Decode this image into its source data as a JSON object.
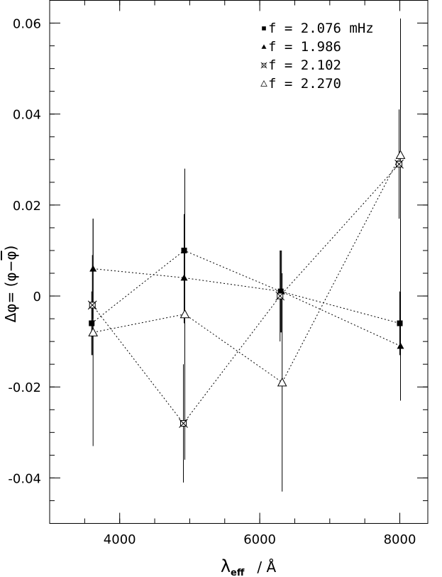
{
  "chart_data": {
    "type": "scatter",
    "title": "",
    "xlabel": "λ_eff / Å",
    "xlabel_main": "λ",
    "xlabel_sub": "eff",
    "xlabel_unit": "/ Å",
    "ylabel": "Δφ= (φ−φ̄)",
    "ylabel_left": "Δφ= (φ−",
    "ylabel_bar": "φ",
    "ylabel_right": ")",
    "xlim": [
      3000,
      8400
    ],
    "ylim": [
      -0.05,
      0.065
    ],
    "xticks": [
      4000,
      6000,
      8000
    ],
    "xtick_labels": [
      "4000",
      "6000",
      "8000"
    ],
    "yticks": [
      -0.04,
      -0.02,
      0,
      0.02,
      0.04,
      0.06
    ],
    "ytick_labels": [
      "-0.04",
      "-0.02",
      "0",
      "0.02",
      "0.04",
      "0.06"
    ],
    "x_minor_step": 500,
    "y_minor_step": 0.005,
    "grid": false,
    "legend_position": "top-right",
    "connect_lines": "dotted",
    "series": [
      {
        "name": "f = 2.076 mHz",
        "marker": "filled-square",
        "points": [
          {
            "x": 3600,
            "y": -0.006,
            "err": 0.007
          },
          {
            "x": 4920,
            "y": 0.01,
            "err": 0.008
          },
          {
            "x": 6300,
            "y": 0.001,
            "err": 0.009
          },
          {
            "x": 8000,
            "y": -0.006,
            "err": 0.007
          }
        ]
      },
      {
        "name": "f = 1.986",
        "marker": "filled-triangle",
        "points": [
          {
            "x": 3620,
            "y": 0.006,
            "err": 0.011
          },
          {
            "x": 4920,
            "y": 0.004,
            "err": 0.01
          },
          {
            "x": 6310,
            "y": 0.001,
            "err": 0.009
          },
          {
            "x": 8010,
            "y": -0.011,
            "err": 0.012
          }
        ]
      },
      {
        "name": "f = 2.102",
        "marker": "open-star",
        "points": [
          {
            "x": 3610,
            "y": -0.002,
            "err": 0.011
          },
          {
            "x": 4910,
            "y": -0.028,
            "err": 0.013
          },
          {
            "x": 6290,
            "y": 0.0,
            "err": 0.01
          },
          {
            "x": 7990,
            "y": 0.029,
            "err": 0.012
          }
        ]
      },
      {
        "name": "f = 2.270",
        "marker": "open-triangle",
        "points": [
          {
            "x": 3620,
            "y": -0.008,
            "err": 0.025
          },
          {
            "x": 4930,
            "y": -0.004,
            "err": 0.032
          },
          {
            "x": 6320,
            "y": -0.019,
            "err": 0.024
          },
          {
            "x": 8010,
            "y": 0.031,
            "err": 0.03
          }
        ]
      }
    ]
  }
}
